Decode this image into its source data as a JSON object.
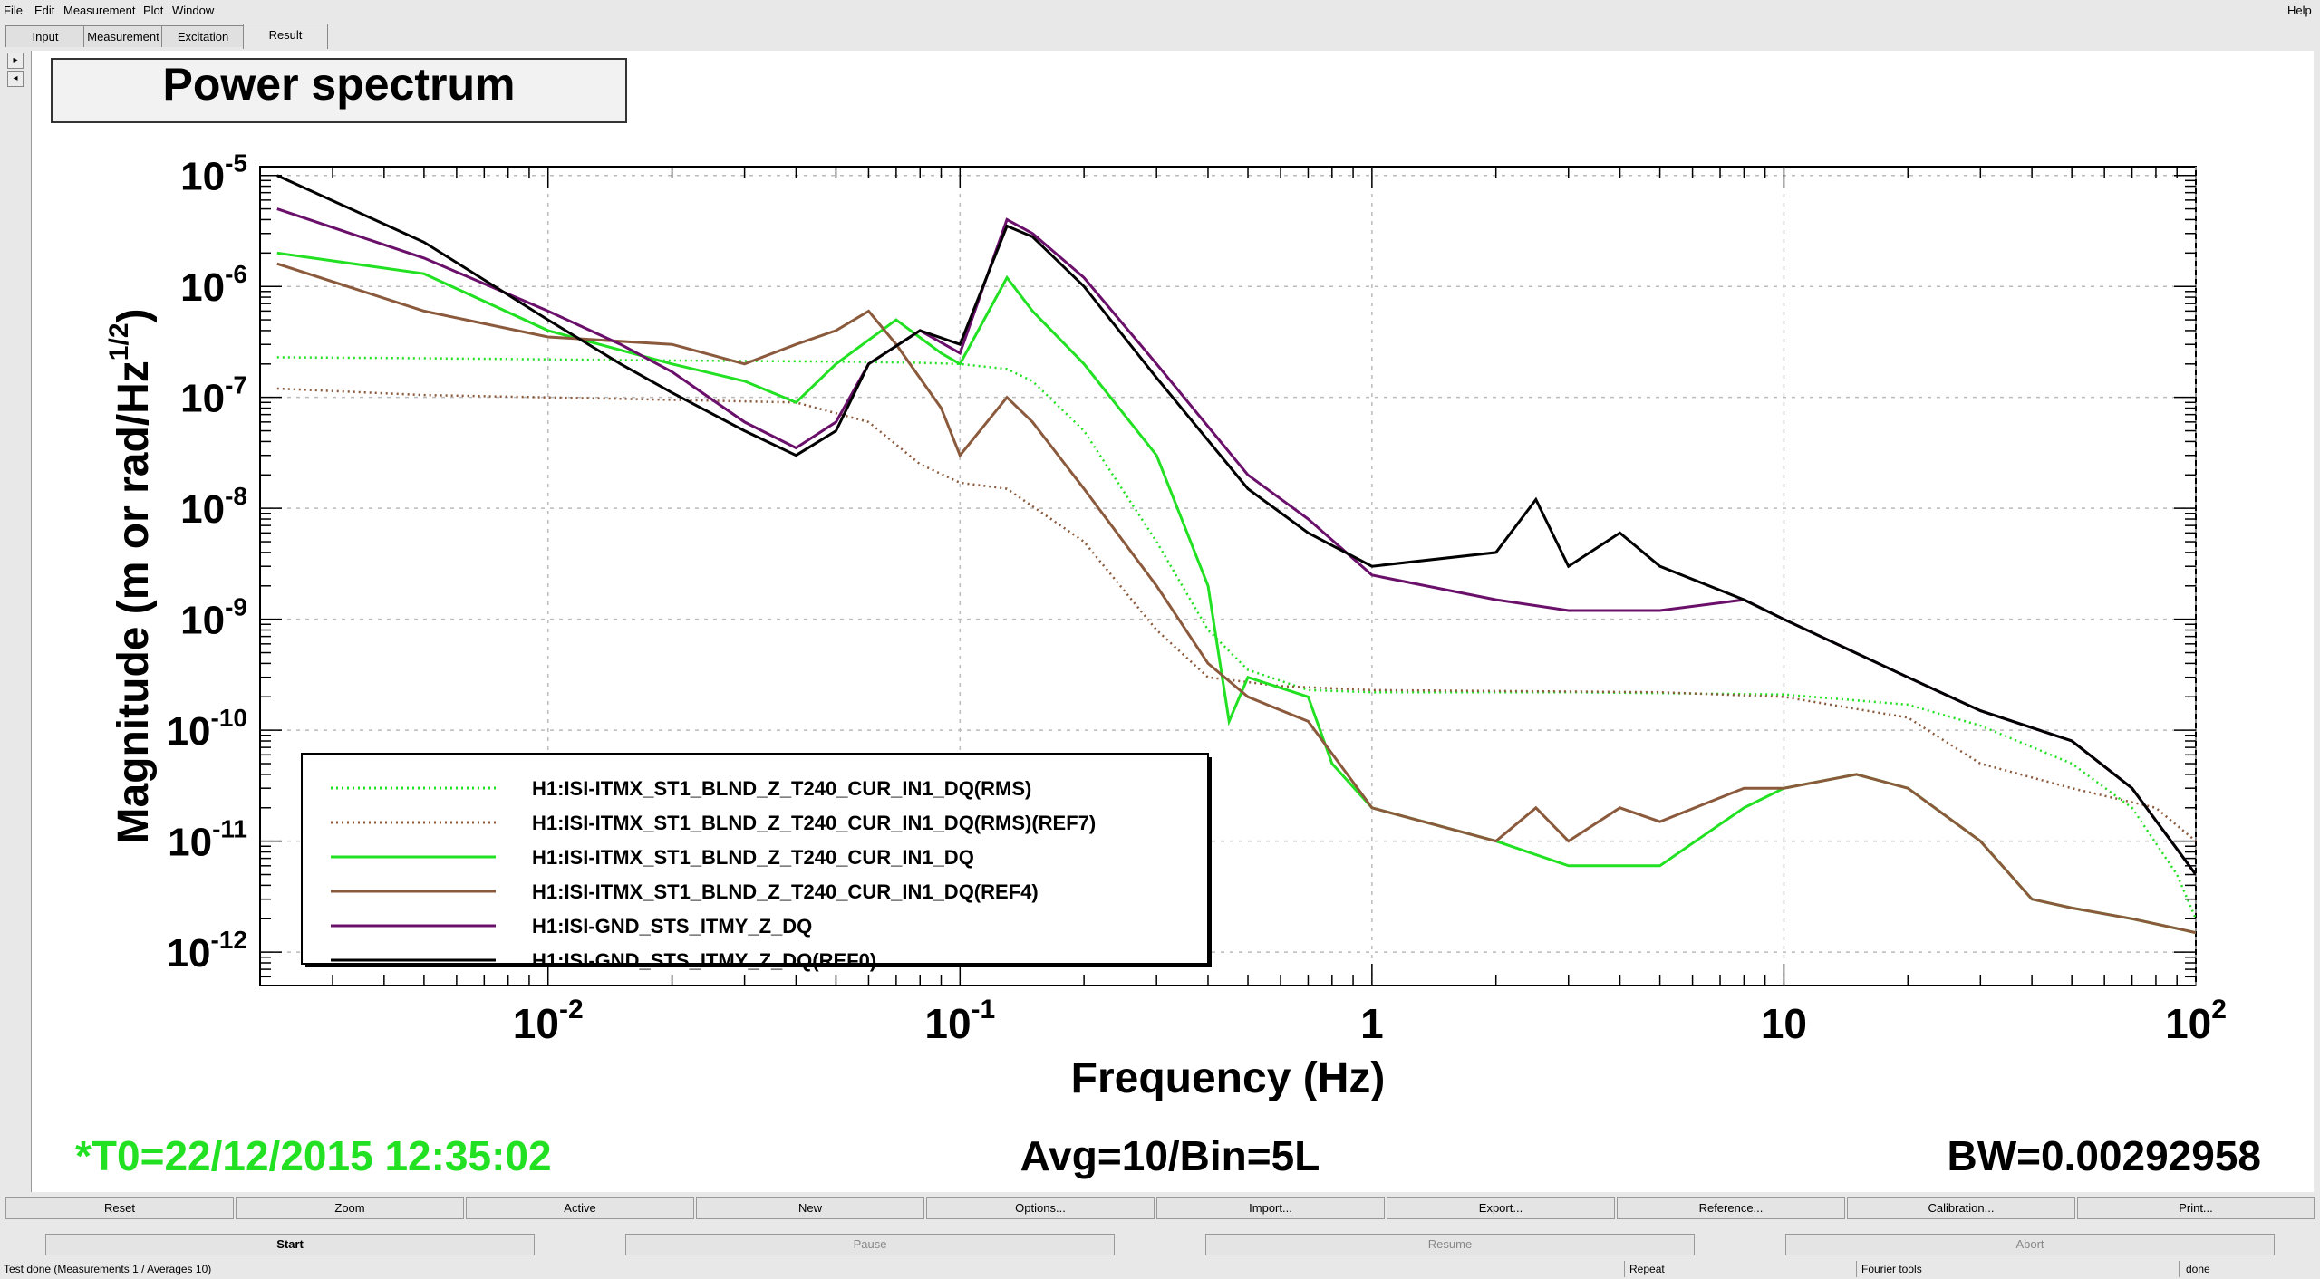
{
  "menu": {
    "items": [
      "File",
      "Edit",
      "Measurement",
      "Plot",
      "Window"
    ],
    "help": "Help"
  },
  "tabs": [
    "Input",
    "Measurement",
    "Excitation",
    "Result"
  ],
  "active_tab": "Result",
  "sidebar": {
    "arrow_right": "▸",
    "arrow_left": "◂"
  },
  "plot_header": {
    "t0": "*T0=22/12/2015 12:35:02",
    "avg": "Avg=10/Bin=5L",
    "bw": "BW=0.00292958"
  },
  "chart_data": {
    "type": "line",
    "title": "Power spectrum",
    "xlabel": "Frequency (Hz)",
    "ylabel_main": "Magnitude (m or rad/Hz",
    "ylabel_sup": "1/2",
    "ylabel_end": ")",
    "x_scale": "log",
    "y_scale": "log",
    "xlim": [
      0.002,
      100
    ],
    "ylim": [
      5e-13,
      1.2e-05
    ],
    "grid": true,
    "legend_placement": "bottom-left",
    "xticks": [
      {
        "value": 0.01,
        "base": "10",
        "exp": "-2"
      },
      {
        "value": 0.1,
        "base": "10",
        "exp": "-1"
      },
      {
        "value": 1,
        "base": "1",
        "exp": ""
      },
      {
        "value": 10,
        "base": "10",
        "exp": ""
      },
      {
        "value": 100,
        "base": "10",
        "exp": "2"
      }
    ],
    "yticks": [
      {
        "value": 1e-05,
        "base": "10",
        "exp": "-5"
      },
      {
        "value": 1e-06,
        "base": "10",
        "exp": "-6"
      },
      {
        "value": 1e-07,
        "base": "10",
        "exp": "-7"
      },
      {
        "value": 1e-08,
        "base": "10",
        "exp": "-8"
      },
      {
        "value": 1e-09,
        "base": "10",
        "exp": "-9"
      },
      {
        "value": 1e-10,
        "base": "10",
        "exp": "-10"
      },
      {
        "value": 1e-11,
        "base": "10",
        "exp": "-11"
      },
      {
        "value": 1e-12,
        "base": "10",
        "exp": "-12"
      }
    ],
    "series": [
      {
        "name": "H1:ISI-ITMX_ST1_BLND_Z_T240_CUR_IN1_DQ(RMS)",
        "color": "#22e022",
        "style": "dotted",
        "points": [
          [
            0.0022,
            2.3e-07
          ],
          [
            0.005,
            2.25e-07
          ],
          [
            0.01,
            2.2e-07
          ],
          [
            0.02,
            2.15e-07
          ],
          [
            0.05,
            2.1e-07
          ],
          [
            0.08,
            2.05e-07
          ],
          [
            0.1,
            2e-07
          ],
          [
            0.13,
            1.8e-07
          ],
          [
            0.15,
            1.4e-07
          ],
          [
            0.2,
            5e-08
          ],
          [
            0.3,
            5e-09
          ],
          [
            0.4,
            8e-10
          ],
          [
            0.5,
            3.5e-10
          ],
          [
            0.7,
            2.3e-10
          ],
          [
            1,
            2.2e-10
          ],
          [
            3,
            2.2e-10
          ],
          [
            10,
            2.1e-10
          ],
          [
            20,
            1.7e-10
          ],
          [
            30,
            1.1e-10
          ],
          [
            50,
            5e-11
          ],
          [
            70,
            2e-11
          ],
          [
            90,
            5e-12
          ],
          [
            100,
            2e-12
          ]
        ]
      },
      {
        "name": "H1:ISI-ITMX_ST1_BLND_Z_T240_CUR_IN1_DQ(RMS)(REF7)",
        "color": "#8b5a3c",
        "style": "dotted",
        "points": [
          [
            0.0022,
            1.2e-07
          ],
          [
            0.005,
            1.05e-07
          ],
          [
            0.01,
            1e-07
          ],
          [
            0.02,
            9.5e-08
          ],
          [
            0.04,
            9e-08
          ],
          [
            0.06,
            6e-08
          ],
          [
            0.08,
            2.5e-08
          ],
          [
            0.1,
            1.7e-08
          ],
          [
            0.13,
            1.5e-08
          ],
          [
            0.2,
            5e-09
          ],
          [
            0.3,
            8e-10
          ],
          [
            0.4,
            3e-10
          ],
          [
            0.6,
            2.5e-10
          ],
          [
            1,
            2.3e-10
          ],
          [
            5,
            2.2e-10
          ],
          [
            10,
            2e-10
          ],
          [
            20,
            1.3e-10
          ],
          [
            30,
            5e-11
          ],
          [
            50,
            3e-11
          ],
          [
            80,
            2e-11
          ],
          [
            100,
            1e-11
          ]
        ]
      },
      {
        "name": "H1:ISI-ITMX_ST1_BLND_Z_T240_CUR_IN1_DQ",
        "color": "#22e022",
        "style": "solid",
        "points": [
          [
            0.0022,
            2e-06
          ],
          [
            0.005,
            1.3e-06
          ],
          [
            0.01,
            4e-07
          ],
          [
            0.02,
            2e-07
          ],
          [
            0.03,
            1.4e-07
          ],
          [
            0.04,
            9e-08
          ],
          [
            0.05,
            2e-07
          ],
          [
            0.07,
            5e-07
          ],
          [
            0.09,
            2.5e-07
          ],
          [
            0.1,
            2e-07
          ],
          [
            0.13,
            1.2e-06
          ],
          [
            0.15,
            6e-07
          ],
          [
            0.2,
            2e-07
          ],
          [
            0.3,
            3e-08
          ],
          [
            0.4,
            2e-09
          ],
          [
            0.45,
            1.2e-10
          ],
          [
            0.5,
            3e-10
          ],
          [
            0.7,
            2e-10
          ],
          [
            0.8,
            5e-11
          ],
          [
            1,
            2e-11
          ],
          [
            2,
            1e-11
          ],
          [
            3,
            6e-12
          ],
          [
            5,
            6e-12
          ],
          [
            8,
            2e-11
          ],
          [
            10,
            3e-11
          ],
          [
            15,
            4e-11
          ],
          [
            20,
            3e-11
          ],
          [
            30,
            1e-11
          ],
          [
            40,
            3e-12
          ],
          [
            50,
            2.5e-12
          ],
          [
            70,
            2e-12
          ],
          [
            100,
            1.5e-12
          ]
        ]
      },
      {
        "name": "H1:ISI-ITMX_ST1_BLND_Z_T240_CUR_IN1_DQ(REF4)",
        "color": "#8b5a3c",
        "style": "solid",
        "points": [
          [
            0.0022,
            1.6e-06
          ],
          [
            0.005,
            6e-07
          ],
          [
            0.01,
            3.5e-07
          ],
          [
            0.02,
            3e-07
          ],
          [
            0.03,
            2e-07
          ],
          [
            0.04,
            3e-07
          ],
          [
            0.05,
            4e-07
          ],
          [
            0.06,
            6e-07
          ],
          [
            0.07,
            3e-07
          ],
          [
            0.09,
            8e-08
          ],
          [
            0.1,
            3e-08
          ],
          [
            0.13,
            1e-07
          ],
          [
            0.15,
            6e-08
          ],
          [
            0.2,
            1.5e-08
          ],
          [
            0.3,
            2e-09
          ],
          [
            0.4,
            4e-10
          ],
          [
            0.5,
            2e-10
          ],
          [
            0.7,
            1.2e-10
          ],
          [
            1,
            2e-11
          ],
          [
            2,
            1e-11
          ],
          [
            2.5,
            2e-11
          ],
          [
            3,
            1e-11
          ],
          [
            4,
            2e-11
          ],
          [
            5,
            1.5e-11
          ],
          [
            8,
            3e-11
          ],
          [
            10,
            3e-11
          ],
          [
            15,
            4e-11
          ],
          [
            20,
            3e-11
          ],
          [
            30,
            1e-11
          ],
          [
            40,
            3e-12
          ],
          [
            50,
            2.5e-12
          ],
          [
            70,
            2e-12
          ],
          [
            100,
            1.5e-12
          ]
        ]
      },
      {
        "name": "H1:ISI-GND_STS_ITMY_Z_DQ",
        "color": "#6a0f6a",
        "style": "solid",
        "points": [
          [
            0.0022,
            5e-06
          ],
          [
            0.005,
            1.8e-06
          ],
          [
            0.01,
            6e-07
          ],
          [
            0.015,
            3e-07
          ],
          [
            0.02,
            1.7e-07
          ],
          [
            0.03,
            6e-08
          ],
          [
            0.04,
            3.5e-08
          ],
          [
            0.05,
            6e-08
          ],
          [
            0.06,
            2e-07
          ],
          [
            0.08,
            4e-07
          ],
          [
            0.1,
            2.5e-07
          ],
          [
            0.13,
            4e-06
          ],
          [
            0.15,
            3e-06
          ],
          [
            0.2,
            1.2e-06
          ],
          [
            0.3,
            2e-07
          ],
          [
            0.5,
            2e-08
          ],
          [
            0.7,
            8e-09
          ],
          [
            1,
            2.5e-09
          ],
          [
            2,
            1.5e-09
          ],
          [
            3,
            1.2e-09
          ],
          [
            5,
            1.2e-09
          ],
          [
            8,
            1.5e-09
          ],
          [
            10,
            1e-09
          ],
          [
            20,
            3e-10
          ],
          [
            30,
            1.5e-10
          ],
          [
            50,
            8e-11
          ],
          [
            70,
            3e-11
          ],
          [
            100,
            5e-12
          ]
        ]
      },
      {
        "name": "H1:ISI-GND_STS_ITMY_Z_DQ(REF0)",
        "color": "#000000",
        "style": "solid",
        "points": [
          [
            0.0022,
            1e-05
          ],
          [
            0.005,
            2.5e-06
          ],
          [
            0.01,
            5e-07
          ],
          [
            0.015,
            2e-07
          ],
          [
            0.02,
            1.1e-07
          ],
          [
            0.03,
            5e-08
          ],
          [
            0.04,
            3e-08
          ],
          [
            0.05,
            5e-08
          ],
          [
            0.06,
            2e-07
          ],
          [
            0.08,
            4e-07
          ],
          [
            0.1,
            3e-07
          ],
          [
            0.13,
            3.5e-06
          ],
          [
            0.15,
            2.8e-06
          ],
          [
            0.2,
            1e-06
          ],
          [
            0.3,
            1.5e-07
          ],
          [
            0.5,
            1.5e-08
          ],
          [
            0.7,
            6e-09
          ],
          [
            1,
            3e-09
          ],
          [
            2,
            4e-09
          ],
          [
            2.5,
            1.2e-08
          ],
          [
            3,
            3e-09
          ],
          [
            4,
            6e-09
          ],
          [
            5,
            3e-09
          ],
          [
            8,
            1.5e-09
          ],
          [
            10,
            1e-09
          ],
          [
            20,
            3e-10
          ],
          [
            30,
            1.5e-10
          ],
          [
            50,
            8e-11
          ],
          [
            70,
            3e-11
          ],
          [
            100,
            5e-12
          ]
        ]
      }
    ]
  },
  "buttons_row1": [
    "Reset",
    "Zoom",
    "Active",
    "New",
    "Options...",
    "Import...",
    "Export...",
    "Reference...",
    "Calibration...",
    "Print..."
  ],
  "buttons_row2": {
    "start": "Start",
    "pause": "Pause",
    "resume": "Resume",
    "abort": "Abort"
  },
  "status": {
    "main": "Test done (Measurements 1 / Averages 10)",
    "repeat": "Repeat",
    "tools": "Fourier tools",
    "state": "done"
  }
}
